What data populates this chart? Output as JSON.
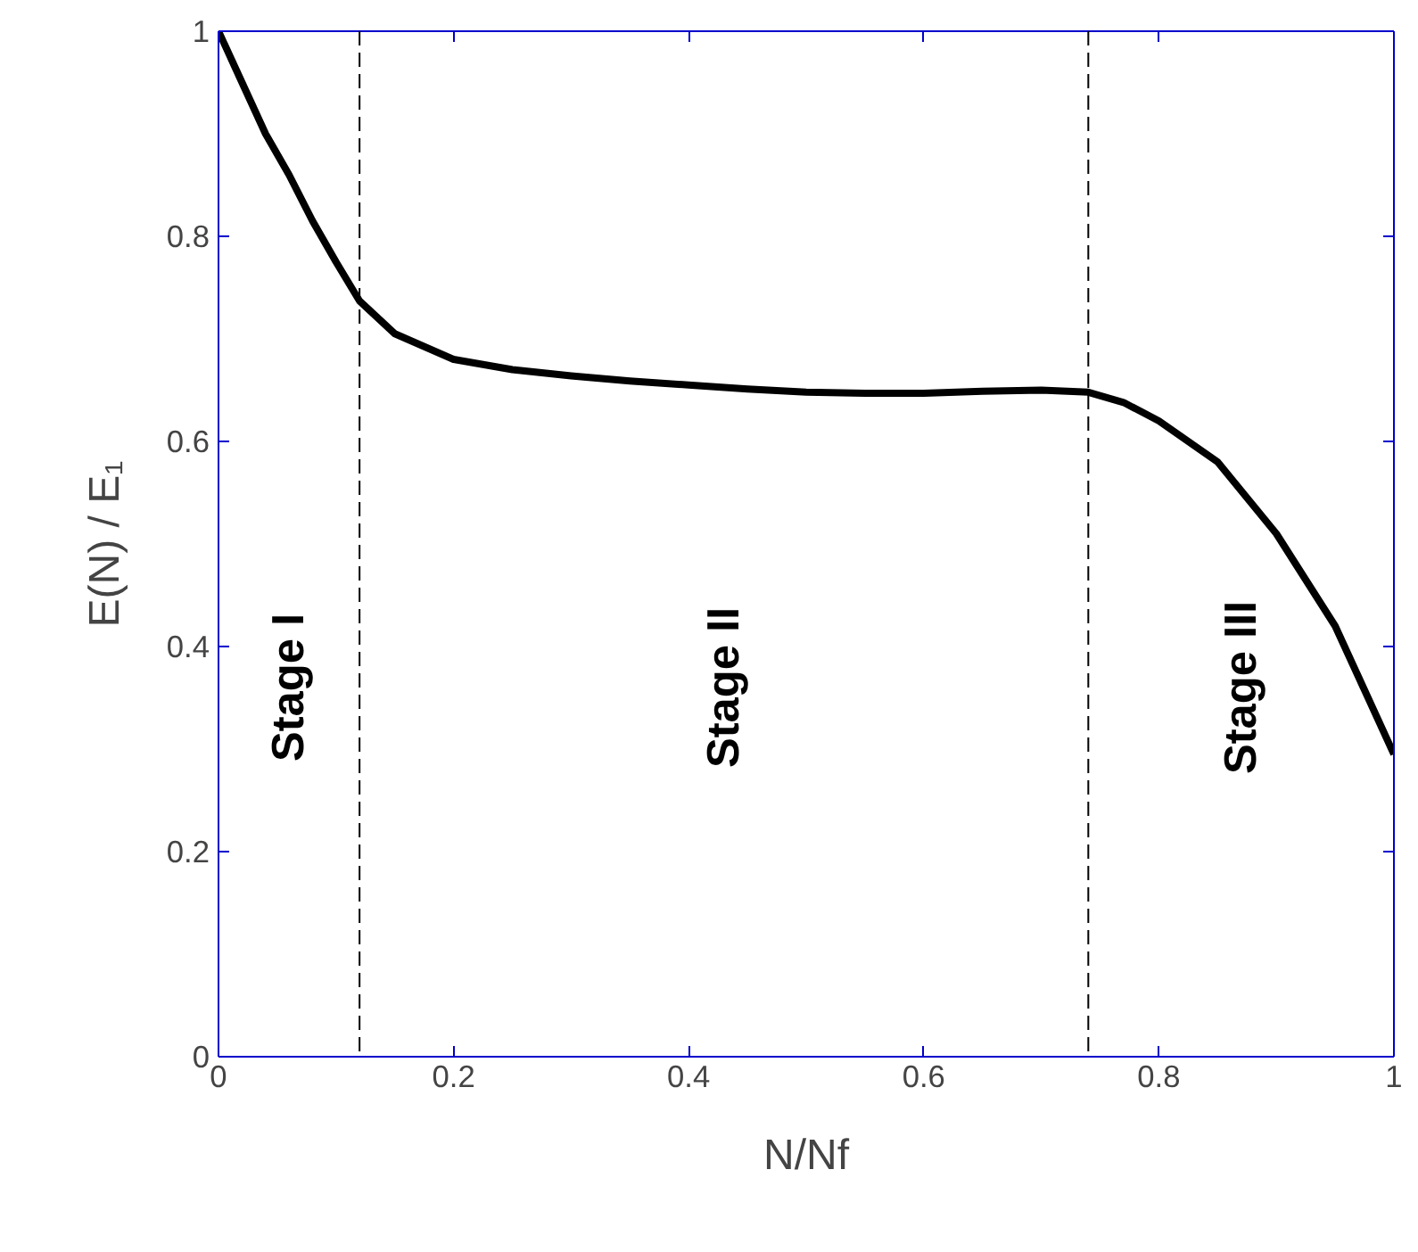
{
  "chart_data": {
    "type": "line",
    "xlabel": "N/Nf",
    "ylabel": "E(N) / E₁",
    "x": [
      0,
      0.02,
      0.04,
      0.06,
      0.08,
      0.1,
      0.12,
      0.15,
      0.2,
      0.25,
      0.3,
      0.35,
      0.4,
      0.45,
      0.5,
      0.55,
      0.6,
      0.65,
      0.7,
      0.74,
      0.77,
      0.8,
      0.85,
      0.9,
      0.95,
      1
    ],
    "series": [
      {
        "color": "#000000",
        "values": [
          1,
          0.95,
          0.9,
          0.86,
          0.815,
          0.775,
          0.737,
          0.705,
          0.68,
          0.67,
          0.664,
          0.659,
          0.655,
          0.651,
          0.648,
          0.647,
          0.647,
          0.649,
          0.65,
          0.648,
          0.638,
          0.62,
          0.58,
          0.51,
          0.42,
          0.295
        ]
      }
    ],
    "xlim": [
      0,
      1
    ],
    "ylim": [
      0,
      1
    ],
    "xticks": [
      0,
      0.2,
      0.4,
      0.6,
      0.8,
      1
    ],
    "yticks": [
      0,
      0.2,
      0.4,
      0.6,
      0.8,
      1
    ],
    "grid": false,
    "marker": "none",
    "line_style": "solid",
    "ref_lines": [
      {
        "axis": "x",
        "value": 0.12,
        "color": "#000000",
        "line_style": "dashed"
      },
      {
        "axis": "x",
        "value": 0.74,
        "color": "#000000",
        "line_style": "dashed"
      }
    ],
    "annotations": [
      "Stage I",
      "Stage II",
      "Stage III"
    ]
  }
}
